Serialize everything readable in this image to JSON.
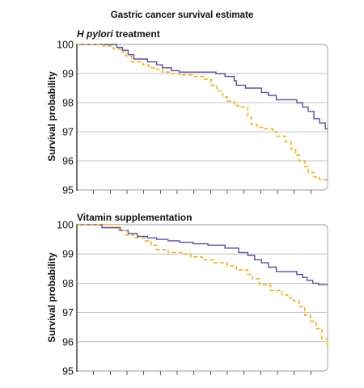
{
  "figure_title": "Gastric cancer survival estimate",
  "colors": {
    "treatment": "#5b4ea6",
    "control": "#f1b21a",
    "grid": "#b3b3b3",
    "frame": "#9c9c9c"
  },
  "chart_data": [
    {
      "type": "line",
      "title_italic": "H pylori",
      "title_rest": " treatment",
      "ylabel": "Survival probability",
      "xlabel": "",
      "ylim": [
        95,
        100
      ],
      "yticks": [
        95,
        96,
        97,
        98,
        99,
        100
      ],
      "xlim": [
        0,
        22
      ],
      "grid": "horizontal",
      "series": [
        {
          "style": "solid",
          "color": "#5b4ea6",
          "x": [
            0,
            2.3,
            3.5,
            4.0,
            4.5,
            5.0,
            5.8,
            6.2,
            7.0,
            7.5,
            8.3,
            9.0,
            10.0,
            12.2,
            13.0,
            13.8,
            14.0,
            14.8,
            15.7,
            16.2,
            16.8,
            17.5,
            19.3,
            19.8,
            20.3,
            20.8,
            21.3,
            21.8,
            22
          ],
          "y": [
            100,
            100,
            99.9,
            99.8,
            99.65,
            99.5,
            99.5,
            99.4,
            99.3,
            99.2,
            99.1,
            99.05,
            99.05,
            99.0,
            98.9,
            98.75,
            98.6,
            98.5,
            98.5,
            98.35,
            98.25,
            98.1,
            98.0,
            97.85,
            97.7,
            97.45,
            97.3,
            97.1,
            97.1
          ]
        },
        {
          "style": "dashed",
          "color": "#f1b21a",
          "x": [
            0,
            1.7,
            2.3,
            3.2,
            3.8,
            4.3,
            4.8,
            5.8,
            6.3,
            7.0,
            7.5,
            8.3,
            9.0,
            10.2,
            11.2,
            11.8,
            12.3,
            12.8,
            13.2,
            13.8,
            14.2,
            15.0,
            15.3,
            15.8,
            16.5,
            17.2,
            17.5,
            18.3,
            18.8,
            19.2,
            19.5,
            20.0,
            20.3,
            20.8,
            21.3,
            22
          ],
          "y": [
            100,
            100,
            99.95,
            99.85,
            99.75,
            99.6,
            99.4,
            99.3,
            99.2,
            99.15,
            99.05,
            99.0,
            98.95,
            98.9,
            98.8,
            98.6,
            98.4,
            98.2,
            98.05,
            97.9,
            97.85,
            97.5,
            97.25,
            97.15,
            97.1,
            97.0,
            96.85,
            96.65,
            96.4,
            96.2,
            96.0,
            95.8,
            95.6,
            95.45,
            95.35,
            95.35
          ]
        }
      ]
    },
    {
      "type": "line",
      "title_italic": "",
      "title_rest": "Vitamin supplementation",
      "ylabel": "Survival probability",
      "xlabel": "",
      "ylim": [
        95,
        100
      ],
      "yticks": [
        95,
        96,
        97,
        98,
        99,
        100
      ],
      "xlim": [
        0,
        22
      ],
      "grid": "horizontal",
      "series": [
        {
          "style": "solid",
          "color": "#5b4ea6",
          "x": [
            0,
            1.7,
            2.2,
            3.8,
            4.5,
            5.3,
            6.2,
            7.0,
            8.0,
            9.0,
            10.2,
            11.5,
            13.0,
            14.2,
            15.0,
            15.6,
            16.2,
            16.8,
            17.5,
            19.3,
            19.8,
            20.2,
            20.7,
            21.2,
            22
          ],
          "y": [
            100,
            100,
            99.9,
            99.8,
            99.7,
            99.6,
            99.55,
            99.5,
            99.45,
            99.4,
            99.35,
            99.3,
            99.2,
            99.05,
            98.95,
            98.8,
            98.7,
            98.55,
            98.4,
            98.3,
            98.2,
            98.1,
            98.0,
            97.95,
            97.95
          ]
        },
        {
          "style": "dashed",
          "color": "#f1b21a",
          "x": [
            0,
            3.0,
            3.7,
            4.3,
            5.0,
            6.0,
            6.5,
            7.0,
            8.0,
            9.3,
            10.0,
            11.0,
            12.0,
            13.2,
            14.0,
            15.0,
            15.4,
            16.0,
            17.0,
            18.0,
            18.5,
            19.0,
            19.5,
            20.0,
            20.5,
            21.0,
            21.5,
            22
          ],
          "y": [
            100,
            100,
            99.8,
            99.65,
            99.55,
            99.45,
            99.3,
            99.15,
            99.05,
            99.0,
            98.9,
            98.8,
            98.7,
            98.6,
            98.45,
            98.3,
            98.15,
            97.95,
            97.75,
            97.6,
            97.5,
            97.4,
            97.2,
            96.9,
            96.7,
            96.45,
            96.1,
            95.85
          ]
        }
      ]
    }
  ]
}
